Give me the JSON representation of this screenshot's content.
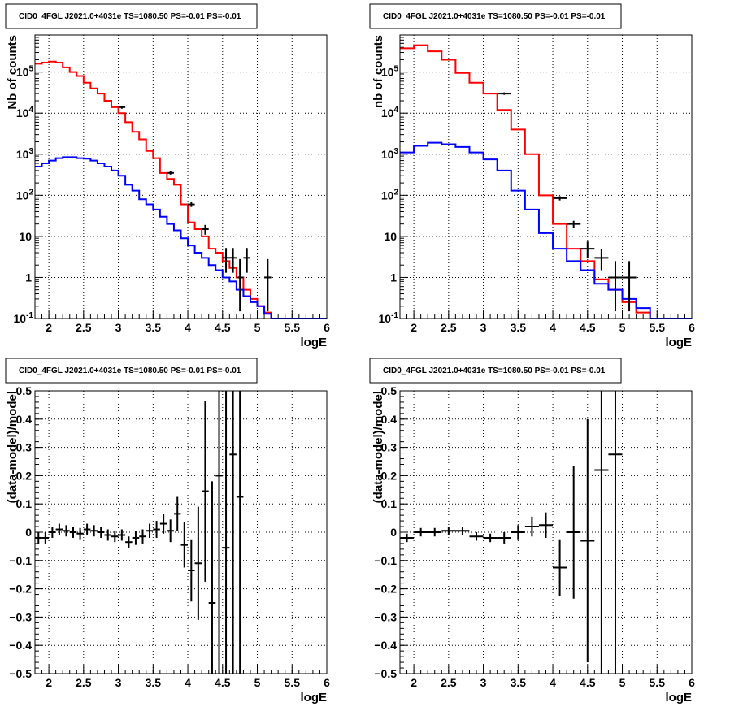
{
  "chart_data": [
    {
      "type": "histogram-log",
      "title": "CID0_4FGL J2021.0+4031e TS=1080.50 PS=-0.01 PS=-0.01",
      "xlabel": "logE",
      "ylabel": "Nb of counts",
      "xlim": [
        1.8,
        6.0
      ],
      "ylim": [
        0.1,
        800000
      ],
      "yscale": "log",
      "grid": true,
      "xticks": [
        "2",
        "2.5",
        "3",
        "3.5",
        "4",
        "4.5",
        "5",
        "5.5",
        "6"
      ],
      "yticks": [
        "10^-1",
        "1",
        "10",
        "10^2",
        "10^3",
        "10^4",
        "10^5"
      ],
      "bin_edges": [
        1.8,
        1.9,
        2.0,
        2.1,
        2.2,
        2.3,
        2.4,
        2.5,
        2.6,
        2.7,
        2.8,
        2.9,
        3.0,
        3.1,
        3.2,
        3.3,
        3.4,
        3.5,
        3.6,
        3.7,
        3.8,
        3.9,
        4.0,
        4.1,
        4.2,
        4.3,
        4.4,
        4.5,
        4.6,
        4.7,
        4.8,
        4.9,
        5.0,
        5.1,
        5.2,
        5.3,
        5.4,
        5.5,
        5.6,
        5.7,
        5.8,
        5.9,
        6.0
      ],
      "series": [
        {
          "color": "#ff0000",
          "style": "step",
          "values": [
            160000,
            170000,
            180000,
            170000,
            130000,
            100000,
            80000,
            55000,
            40000,
            30000,
            20000,
            14000,
            10000,
            6000,
            3500,
            2300,
            1200,
            800,
            350,
            250,
            180,
            60,
            22,
            15,
            10,
            5,
            4,
            2.5,
            1.7,
            1.0,
            0.5,
            0.3,
            0.2,
            0.14,
            0.1,
            0.1,
            0.1,
            0.1,
            0.1,
            0.1,
            0.1,
            0.1
          ]
        },
        {
          "color": "#0000ff",
          "style": "step",
          "values": [
            500,
            600,
            700,
            800,
            850,
            850,
            800,
            780,
            700,
            600,
            500,
            400,
            300,
            180,
            130,
            80,
            60,
            45,
            30,
            20,
            14,
            9,
            6,
            4,
            3,
            2,
            1.5,
            1.0,
            0.8,
            0.5,
            0.35,
            0.25,
            0.2,
            0.13,
            0.1,
            0.1,
            0.1,
            0.1,
            0.1,
            0.1,
            0.1,
            0.1
          ]
        },
        {
          "color": "#000000",
          "style": "error-points",
          "points": [
            [
              3.05,
              14000,
              12800,
              15200
            ],
            [
              3.75,
              350,
              320,
              380
            ],
            [
              4.05,
              60,
              52,
              68
            ],
            [
              4.25,
              15,
              11,
              19
            ],
            [
              4.55,
              3,
              1.3,
              5.2
            ],
            [
              4.65,
              3,
              1.3,
              5.2
            ],
            [
              4.75,
              1,
              0.15,
              2.8
            ],
            [
              4.85,
              3,
              1.3,
              5.2
            ],
            [
              5.15,
              1,
              0.15,
              2.8
            ]
          ]
        }
      ]
    },
    {
      "type": "histogram-log",
      "title": "CID0_4FGL J2021.0+4031e TS=1080.50 PS=-0.01 PS=-0.01",
      "xlabel": "logE",
      "ylabel": "nb of counts",
      "xlim": [
        1.8,
        6.0
      ],
      "ylim": [
        0.1,
        800000
      ],
      "yscale": "log",
      "grid": true,
      "xticks": [
        "2",
        "2.5",
        "3",
        "3.5",
        "4",
        "4.5",
        "5",
        "5.5",
        "6"
      ],
      "yticks": [
        "10^-1",
        "1",
        "10",
        "10^2",
        "10^3",
        "10^4",
        "10^5"
      ],
      "bin_edges": [
        1.8,
        2.0,
        2.2,
        2.4,
        2.6,
        2.8,
        3.0,
        3.2,
        3.4,
        3.6,
        3.8,
        4.0,
        4.2,
        4.4,
        4.6,
        4.8,
        5.0,
        5.2,
        5.4,
        5.6,
        5.8,
        6.0
      ],
      "series": [
        {
          "color": "#ff0000",
          "style": "step",
          "values": [
            380000,
            450000,
            320000,
            200000,
            95000,
            55000,
            30000,
            12000,
            4000,
            1000,
            100,
            20,
            5,
            2.5,
            0.9,
            0.5,
            0.25,
            0.14,
            0.1,
            0.1,
            0.1
          ]
        },
        {
          "color": "#0000ff",
          "style": "step",
          "values": [
            1100,
            1600,
            1900,
            1750,
            1500,
            1100,
            750,
            400,
            130,
            45,
            12,
            5,
            2.5,
            1.5,
            0.7,
            0.5,
            0.3,
            0.18,
            0.1,
            0.1,
            0.1
          ]
        },
        {
          "color": "#000000",
          "style": "error-points",
          "points": [
            [
              3.3,
              30000,
              28000,
              32000
            ],
            [
              4.1,
              85,
              75,
              95
            ],
            [
              4.3,
              20,
              16,
              24
            ],
            [
              4.5,
              5,
              3,
              7.5
            ],
            [
              4.7,
              3,
              1.5,
              5
            ],
            [
              4.9,
              1,
              0.15,
              2.5
            ],
            [
              5.1,
              1,
              0.15,
              2.5
            ]
          ]
        }
      ]
    },
    {
      "type": "residuals",
      "title": "CID0_4FGL J2021.0+4031e TS=1080.50 PS=-0.01 PS=-0.01",
      "xlabel": "logE",
      "ylabel": "(data-model)/model",
      "xlim": [
        1.8,
        6.0
      ],
      "ylim": [
        -0.5,
        0.5
      ],
      "grid": true,
      "xticks": [
        "2",
        "2.5",
        "3",
        "3.5",
        "4",
        "4.5",
        "5",
        "5.5",
        "6"
      ],
      "yticks": [
        "-0.5",
        "-0.4",
        "-0.3",
        "-0.2",
        "-0.1",
        "0",
        "0.1",
        "0.2",
        "0.3",
        "0.4",
        "0.5"
      ],
      "bin_halfwidth": 0.05,
      "points": [
        [
          1.85,
          -0.02,
          0.02
        ],
        [
          1.95,
          -0.02,
          0.02
        ],
        [
          2.05,
          0.0,
          0.02
        ],
        [
          2.15,
          0.01,
          0.02
        ],
        [
          2.25,
          0.005,
          0.02
        ],
        [
          2.35,
          0.0,
          0.02
        ],
        [
          2.45,
          -0.005,
          0.02
        ],
        [
          2.55,
          0.01,
          0.02
        ],
        [
          2.65,
          0.005,
          0.02
        ],
        [
          2.75,
          0.0,
          0.02
        ],
        [
          2.85,
          -0.01,
          0.02
        ],
        [
          2.95,
          -0.015,
          0.02
        ],
        [
          3.05,
          -0.01,
          0.02
        ],
        [
          3.15,
          -0.035,
          0.02
        ],
        [
          3.25,
          -0.02,
          0.025
        ],
        [
          3.35,
          -0.015,
          0.025
        ],
        [
          3.45,
          0.005,
          0.025
        ],
        [
          3.55,
          0.01,
          0.03
        ],
        [
          3.65,
          0.03,
          0.035
        ],
        [
          3.75,
          0.005,
          0.04
        ],
        [
          3.85,
          0.065,
          0.06
        ],
        [
          3.95,
          -0.045,
          0.08
        ],
        [
          4.05,
          -0.135,
          0.11
        ],
        [
          4.15,
          -0.11,
          0.2
        ],
        [
          4.25,
          0.145,
          0.32
        ],
        [
          4.35,
          -0.25,
          0.43
        ],
        [
          4.45,
          0.2,
          0.8
        ],
        [
          4.55,
          -0.055,
          0.8
        ],
        [
          4.65,
          0.275,
          0.8
        ],
        [
          4.75,
          0.125,
          0.8
        ]
      ]
    },
    {
      "type": "residuals",
      "title": "CID0_4FGL J2021.0+4031e TS=1080.50 PS=-0.01 PS=-0.01",
      "xlabel": "logE",
      "ylabel": "(data-model)/model",
      "xlim": [
        1.8,
        6.0
      ],
      "ylim": [
        -0.5,
        0.5
      ],
      "grid": true,
      "xticks": [
        "2",
        "2.5",
        "3",
        "3.5",
        "4",
        "4.5",
        "5",
        "5.5",
        "6"
      ],
      "yticks": [
        "-0.5",
        "-0.4",
        "-0.3",
        "-0.2",
        "-0.1",
        "0",
        "0.1",
        "0.2",
        "0.3",
        "0.4",
        "0.5"
      ],
      "bin_halfwidth": 0.1,
      "points": [
        [
          1.9,
          -0.02,
          0.015
        ],
        [
          2.1,
          0.0,
          0.015
        ],
        [
          2.3,
          0.0,
          0.015
        ],
        [
          2.5,
          0.005,
          0.015
        ],
        [
          2.7,
          0.005,
          0.015
        ],
        [
          2.9,
          -0.015,
          0.015
        ],
        [
          3.1,
          -0.02,
          0.015
        ],
        [
          3.3,
          -0.02,
          0.02
        ],
        [
          3.5,
          0.0,
          0.025
        ],
        [
          3.7,
          0.02,
          0.035
        ],
        [
          3.9,
          0.025,
          0.045
        ],
        [
          4.1,
          -0.125,
          0.1
        ],
        [
          4.3,
          0.0,
          0.235
        ],
        [
          4.5,
          -0.03,
          0.43
        ],
        [
          4.7,
          0.22,
          0.8
        ],
        [
          4.9,
          0.275,
          0.8
        ]
      ]
    }
  ]
}
